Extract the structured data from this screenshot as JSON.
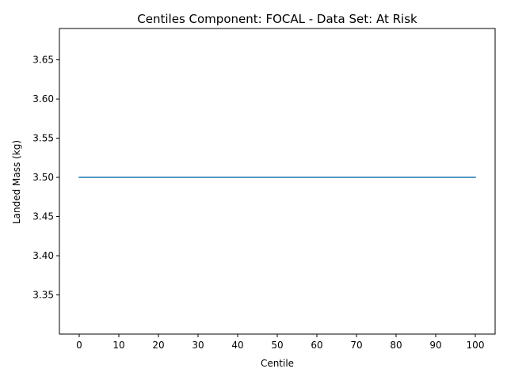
{
  "chart_data": {
    "type": "line",
    "title": "Centiles Component: FOCAL - Data Set: At Risk",
    "xlabel": "Centile",
    "ylabel": "Landed Mass (kg)",
    "xlim": [
      -5,
      105
    ],
    "ylim": [
      3.3,
      3.69
    ],
    "xticks": [
      0,
      10,
      20,
      30,
      40,
      50,
      60,
      70,
      80,
      90,
      100
    ],
    "xtick_labels": [
      "0",
      "10",
      "20",
      "30",
      "40",
      "50",
      "60",
      "70",
      "80",
      "90",
      "100"
    ],
    "yticks": [
      3.35,
      3.4,
      3.45,
      3.5,
      3.55,
      3.6,
      3.65
    ],
    "ytick_labels": [
      "3.35",
      "3.40",
      "3.45",
      "3.50",
      "3.55",
      "3.60",
      "3.65"
    ],
    "grid": false,
    "series": [
      {
        "color": "#1f77b4",
        "x": [
          0,
          10,
          20,
          30,
          40,
          50,
          60,
          70,
          80,
          90,
          100
        ],
        "y": [
          3.5,
          3.5,
          3.5,
          3.5,
          3.5,
          3.5,
          3.5,
          3.5,
          3.5,
          3.5,
          3.5
        ]
      }
    ]
  }
}
